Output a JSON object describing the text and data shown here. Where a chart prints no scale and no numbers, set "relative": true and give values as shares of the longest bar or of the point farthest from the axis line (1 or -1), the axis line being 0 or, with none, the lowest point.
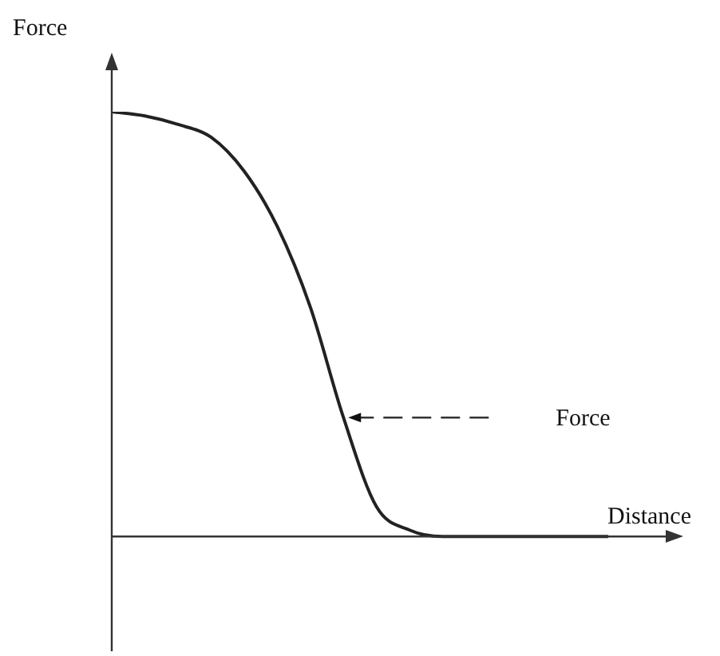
{
  "chart_data": {
    "type": "line",
    "relative": true,
    "ylabel": "Force",
    "xlabel": "Distance",
    "annotations": [
      "Force"
    ],
    "color": "#222222",
    "marker": "none",
    "line_style": "solid",
    "legend": false,
    "categories": [
      null,
      null,
      null,
      null,
      null,
      null,
      null,
      null,
      null,
      null,
      null,
      null,
      null,
      null,
      null,
      null
    ],
    "values": [
      1,
      0.99,
      0.97,
      0.94,
      0.86,
      0.73,
      0.54,
      0.28,
      0.07,
      0.015,
      0,
      0,
      0,
      0,
      0,
      0
    ]
  }
}
